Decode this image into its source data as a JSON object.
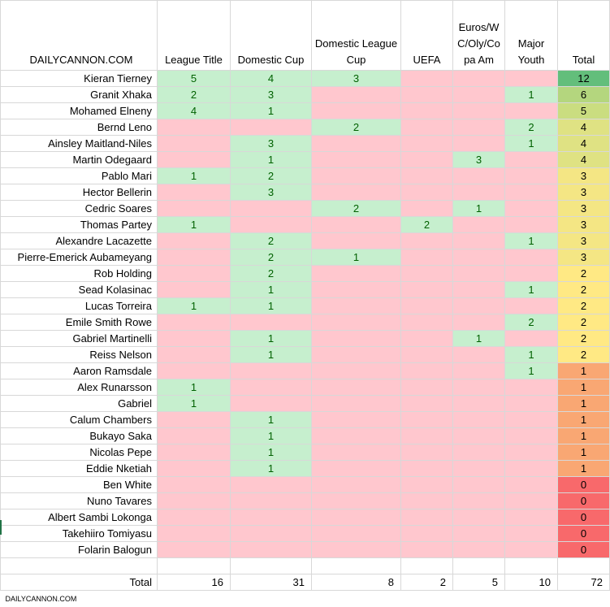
{
  "brand": "DAILYCANNON.COM",
  "footer_brand": "DAILYCANNON.COM",
  "columns": [
    "League Title",
    "Domestic Cup",
    "Domestic League Cup",
    "UEFA",
    "Euros/WC/Oly/Copa Am",
    "Major Youth",
    "Total"
  ],
  "column_labels": {
    "c1": "League Title",
    "c2": "Domestic Cup",
    "c3": "Domestic League Cup",
    "c4": "UEFA",
    "c5": "Euros/W C/Oly/Co pa Am",
    "c6": "Major Youth",
    "c7": "Total"
  },
  "total_colors": {
    "12": "#63be7b",
    "6": "#b4d67e",
    "5": "#cadd80",
    "4": "#dfe283",
    "3": "#f4e684",
    "2": "#ffe984",
    "1": "#f9a773",
    "0": "#f8696b"
  },
  "rows": [
    {
      "name": "Kieran Tierney",
      "v": [
        5,
        4,
        3,
        null,
        null,
        null
      ],
      "total": 12
    },
    {
      "name": "Granit Xhaka",
      "v": [
        2,
        3,
        null,
        null,
        null,
        1
      ],
      "total": 6
    },
    {
      "name": "Mohamed Elneny",
      "v": [
        4,
        1,
        null,
        null,
        null,
        null
      ],
      "total": 5
    },
    {
      "name": "Bernd Leno",
      "v": [
        null,
        null,
        2,
        null,
        null,
        2
      ],
      "total": 4
    },
    {
      "name": "Ainsley Maitland-Niles",
      "v": [
        null,
        3,
        null,
        null,
        null,
        1
      ],
      "total": 4
    },
    {
      "name": "Martin Odegaard",
      "v": [
        null,
        1,
        null,
        null,
        3,
        null
      ],
      "total": 4
    },
    {
      "name": "Pablo Mari",
      "v": [
        1,
        2,
        null,
        null,
        null,
        null
      ],
      "total": 3
    },
    {
      "name": "Hector Bellerin",
      "v": [
        null,
        3,
        null,
        null,
        null,
        null
      ],
      "total": 3
    },
    {
      "name": "Cedric Soares",
      "v": [
        null,
        null,
        2,
        null,
        1,
        null
      ],
      "total": 3
    },
    {
      "name": "Thomas Partey",
      "v": [
        1,
        null,
        null,
        2,
        null,
        null
      ],
      "total": 3
    },
    {
      "name": "Alexandre Lacazette",
      "v": [
        null,
        2,
        null,
        null,
        null,
        1
      ],
      "total": 3
    },
    {
      "name": "Pierre-Emerick Aubameyang",
      "v": [
        null,
        2,
        1,
        null,
        null,
        null
      ],
      "total": 3
    },
    {
      "name": "Rob Holding",
      "v": [
        null,
        2,
        null,
        null,
        null,
        null
      ],
      "total": 2
    },
    {
      "name": "Sead Kolasinac",
      "v": [
        null,
        1,
        null,
        null,
        null,
        1
      ],
      "total": 2
    },
    {
      "name": "Lucas Torreira",
      "v": [
        1,
        1,
        null,
        null,
        null,
        null
      ],
      "total": 2
    },
    {
      "name": "Emile Smith Rowe",
      "v": [
        null,
        null,
        null,
        null,
        null,
        2
      ],
      "total": 2
    },
    {
      "name": "Gabriel Martinelli",
      "v": [
        null,
        1,
        null,
        null,
        1,
        null
      ],
      "total": 2
    },
    {
      "name": "Reiss Nelson",
      "v": [
        null,
        1,
        null,
        null,
        null,
        1
      ],
      "total": 2
    },
    {
      "name": "Aaron Ramsdale",
      "v": [
        null,
        null,
        null,
        null,
        null,
        1
      ],
      "total": 1
    },
    {
      "name": "Alex Runarsson",
      "v": [
        1,
        null,
        null,
        null,
        null,
        null
      ],
      "total": 1
    },
    {
      "name": "Gabriel",
      "v": [
        1,
        null,
        null,
        null,
        null,
        null
      ],
      "total": 1
    },
    {
      "name": "Calum Chambers",
      "v": [
        null,
        1,
        null,
        null,
        null,
        null
      ],
      "total": 1
    },
    {
      "name": "Bukayo Saka",
      "v": [
        null,
        1,
        null,
        null,
        null,
        null
      ],
      "total": 1
    },
    {
      "name": "Nicolas Pepe",
      "v": [
        null,
        1,
        null,
        null,
        null,
        null
      ],
      "total": 1
    },
    {
      "name": "Eddie Nketiah",
      "v": [
        null,
        1,
        null,
        null,
        null,
        null
      ],
      "total": 1
    },
    {
      "name": "Ben White",
      "v": [
        null,
        null,
        null,
        null,
        null,
        null
      ],
      "total": 0
    },
    {
      "name": "Nuno Tavares",
      "v": [
        null,
        null,
        null,
        null,
        null,
        null
      ],
      "total": 0
    },
    {
      "name": "Albert Sambi Lokonga",
      "v": [
        null,
        null,
        null,
        null,
        null,
        null
      ],
      "total": 0
    },
    {
      "name": "Takehiiro Tomiyasu",
      "v": [
        null,
        null,
        null,
        null,
        null,
        null
      ],
      "total": 0
    },
    {
      "name": "Folarin Balogun",
      "v": [
        null,
        null,
        null,
        null,
        null,
        null
      ],
      "total": 0
    }
  ],
  "totals_label": "Total",
  "totals": [
    16,
    31,
    8,
    2,
    5,
    10,
    72
  ]
}
